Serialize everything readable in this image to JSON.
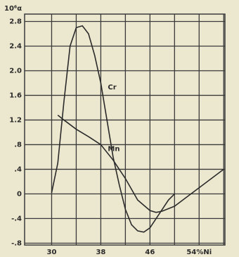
{
  "chart_data": {
    "type": "line",
    "y_label": "10⁶α",
    "xlim": [
      25.6,
      58.2
    ],
    "ylim": [
      -0.83,
      2.92
    ],
    "xticks": [
      30,
      38,
      46,
      {
        "value": 54,
        "label": "54%Ni"
      }
    ],
    "xminorticks": [
      34,
      42,
      50,
      58
    ],
    "yticks": [
      {
        "value": -0.8,
        "label": "-.8"
      },
      {
        "value": -0.4,
        "label": "-.4"
      },
      0,
      {
        "value": 0.4,
        "label": ".4"
      },
      {
        "value": 0.8,
        "label": ".8"
      },
      1.2,
      1.6,
      {
        "value": 2.0,
        "label": "2.0"
      },
      2.4,
      2.8
    ],
    "grid": true,
    "series": [
      {
        "name": "Cr",
        "color": "#2a2a2a",
        "x": [
          30,
          31,
          32,
          33,
          34,
          35,
          36,
          37,
          38,
          39,
          40,
          41,
          42,
          43,
          44,
          45,
          46,
          47,
          48,
          49,
          50
        ],
        "values": [
          0.02,
          0.5,
          1.5,
          2.4,
          2.7,
          2.73,
          2.6,
          2.25,
          1.8,
          1.2,
          0.6,
          0.15,
          -0.25,
          -0.5,
          -0.6,
          -0.62,
          -0.55,
          -0.4,
          -0.25,
          -0.1,
          0.0
        ]
      },
      {
        "name": "Mn",
        "color": "#2a2a2a",
        "x": [
          31,
          32,
          34,
          36,
          38,
          40,
          42,
          44,
          46,
          47,
          48,
          50,
          52,
          54,
          56,
          58
        ],
        "values": [
          1.28,
          1.2,
          1.05,
          0.93,
          0.8,
          0.55,
          0.25,
          -0.1,
          -0.27,
          -0.3,
          -0.28,
          -0.2,
          -0.05,
          0.1,
          0.25,
          0.4
        ]
      }
    ]
  }
}
